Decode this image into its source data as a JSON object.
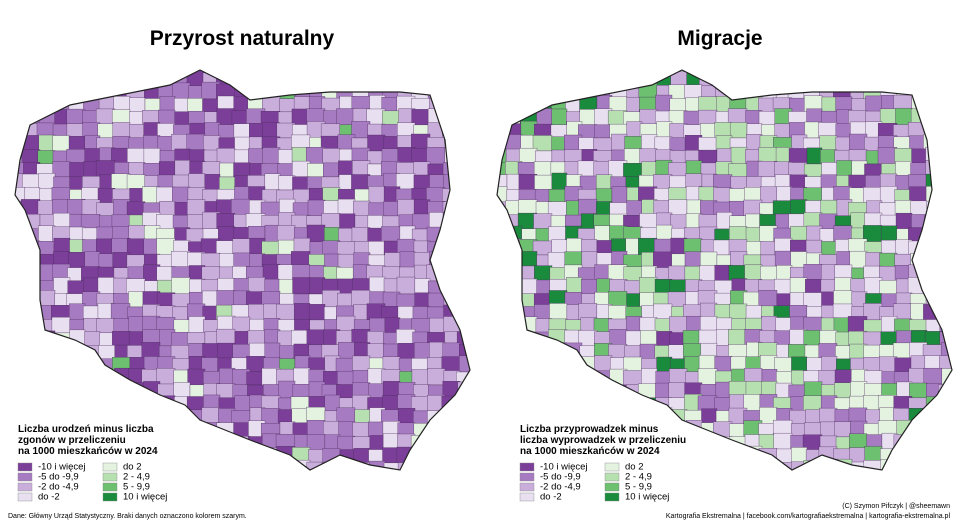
{
  "maps": [
    {
      "title": "Przyrost naturalny",
      "legend": {
        "title_lines": [
          "Liczba urodzeń minus liczba",
          "zgonów w przeliczeniu",
          "na 1000 mieszkańców w 2024"
        ],
        "items": [
          {
            "label": "-10 i więcej",
            "color": "#7b3f99"
          },
          {
            "label": "-5 do -9,9",
            "color": "#a77bc2"
          },
          {
            "label": "-2 do -4,9",
            "color": "#c9addb"
          },
          {
            "label": "do -2",
            "color": "#e8dff0"
          },
          {
            "label": "do 2",
            "color": "#e3f3e0"
          },
          {
            "label": "2 - 4,9",
            "color": "#b6e0b0"
          },
          {
            "label": "5 - 9,9",
            "color": "#6cc070"
          },
          {
            "label": "10 i więcej",
            "color": "#1a8a3c"
          }
        ]
      }
    },
    {
      "title": "Migracje",
      "legend": {
        "title_lines": [
          "Liczba przyprowadzek minus",
          "liczba wyprowadzek w przeliczeniu",
          "na 1000 mieszkańców w 2024"
        ],
        "items": [
          {
            "label": "-10 i więcej",
            "color": "#7b3f99"
          },
          {
            "label": "-5 do -9,9",
            "color": "#a77bc2"
          },
          {
            "label": "-2 do -4,9",
            "color": "#c9addb"
          },
          {
            "label": "do -2",
            "color": "#e8dff0"
          },
          {
            "label": "do 2",
            "color": "#e3f3e0"
          },
          {
            "label": "2 - 4,9",
            "color": "#b6e0b0"
          },
          {
            "label": "5 - 9,9",
            "color": "#6cc070"
          },
          {
            "label": "10 i więcej",
            "color": "#1a8a3c"
          }
        ]
      }
    }
  ],
  "footer": {
    "source": "Dane: Główny Urząd Statystyczny. Braki danych oznaczono kolorem szarym.",
    "credit": "(C) Szymon Pifczyk | @sheemawn",
    "site": "Kartografia Ekstremalna | facebook.com/kartografiaekstremalna | kartografia-ekstremalna.pl"
  }
}
